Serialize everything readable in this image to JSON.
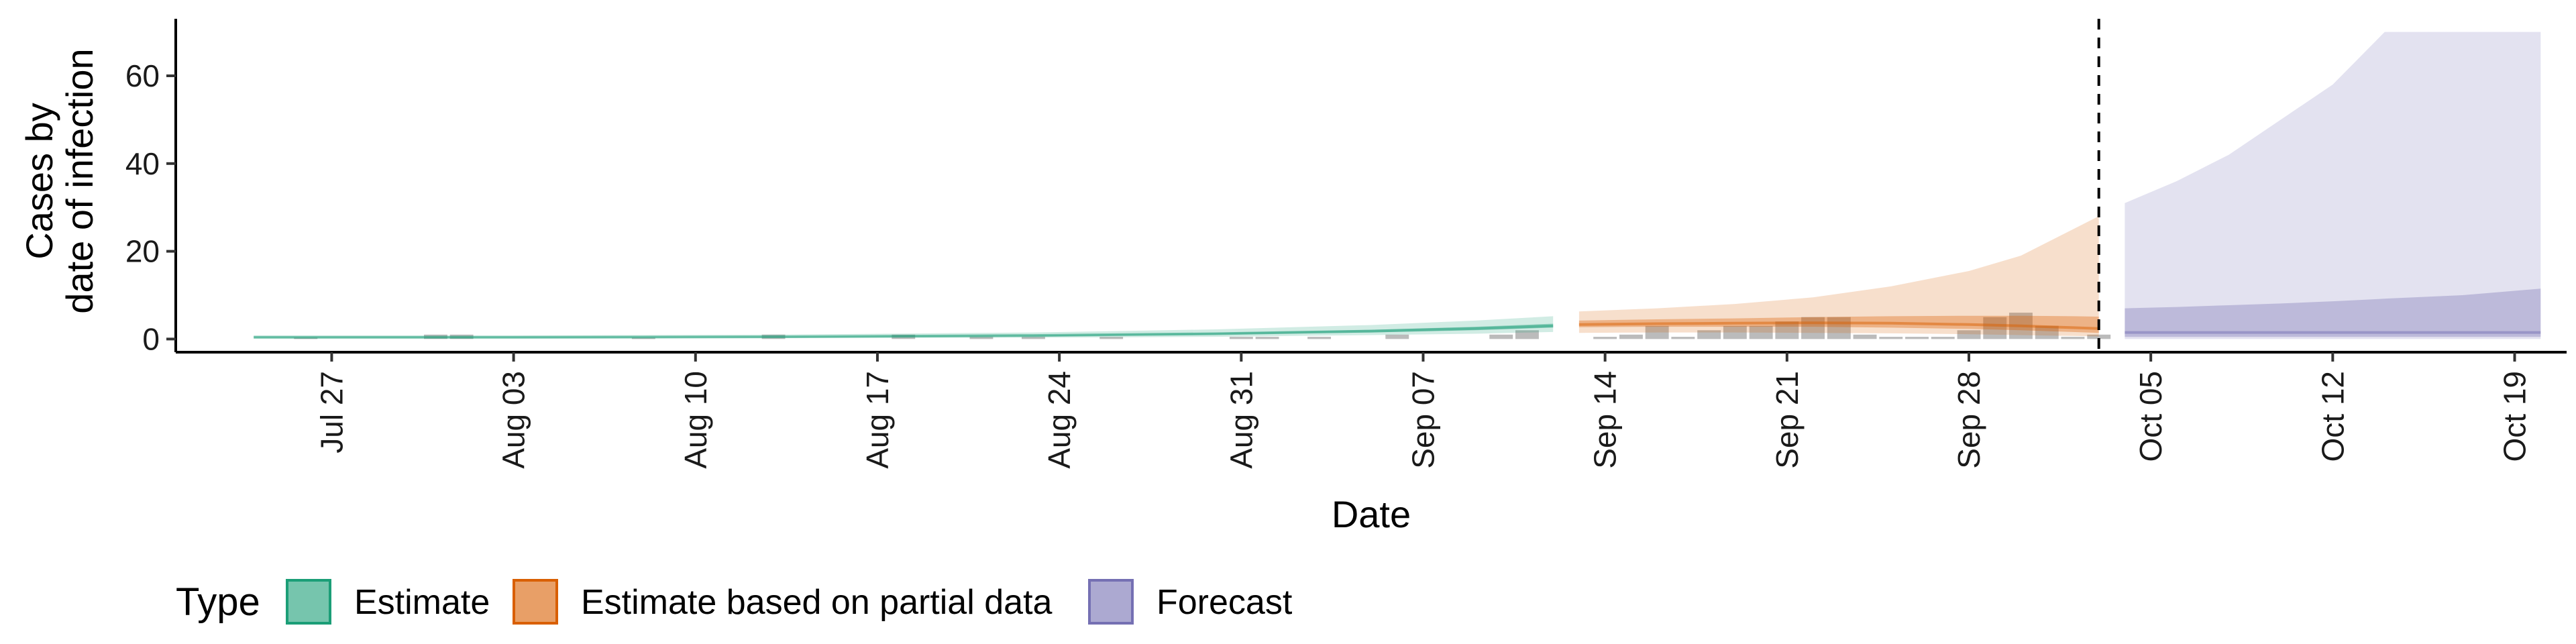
{
  "chart_data": {
    "type": "area",
    "xlabel": "Date",
    "ylabel_lines": [
      "Cases by",
      "date of infection"
    ],
    "ylim": [
      -3,
      73
    ],
    "xlim": [
      "2020-07-21",
      "2020-10-21"
    ],
    "y_ticks": [
      0,
      20,
      40,
      60
    ],
    "x_ticks": [
      {
        "date": "2020-07-27",
        "label": "Jul 27"
      },
      {
        "date": "2020-08-03",
        "label": "Aug 03"
      },
      {
        "date": "2020-08-10",
        "label": "Aug 10"
      },
      {
        "date": "2020-08-17",
        "label": "Aug 17"
      },
      {
        "date": "2020-08-24",
        "label": "Aug 24"
      },
      {
        "date": "2020-08-31",
        "label": "Aug 31"
      },
      {
        "date": "2020-09-07",
        "label": "Sep 07"
      },
      {
        "date": "2020-09-14",
        "label": "Sep 14"
      },
      {
        "date": "2020-09-21",
        "label": "Sep 21"
      },
      {
        "date": "2020-09-28",
        "label": "Sep 28"
      },
      {
        "date": "2020-10-05",
        "label": "Oct 05"
      },
      {
        "date": "2020-10-12",
        "label": "Oct 12"
      },
      {
        "date": "2020-10-19",
        "label": "Oct 19"
      }
    ],
    "forecast_start": "2020-10-03",
    "colors": {
      "estimate": "#1b9e77",
      "partial": "#d95f02",
      "forecast": "#7570b3",
      "bars": "#9e9e9e"
    },
    "legend": {
      "title": "Type",
      "position": "bottom",
      "items": [
        {
          "key": "estimate",
          "label": "Estimate"
        },
        {
          "key": "partial",
          "label": "Estimate based on partial data"
        },
        {
          "key": "forecast",
          "label": "Forecast"
        }
      ]
    },
    "reported_cases": [
      {
        "date": "2020-07-26",
        "value": 0.3
      },
      {
        "date": "2020-07-31",
        "value": 1
      },
      {
        "date": "2020-08-01",
        "value": 1
      },
      {
        "date": "2020-08-08",
        "value": 0.3
      },
      {
        "date": "2020-08-13",
        "value": 1
      },
      {
        "date": "2020-08-18",
        "value": 1
      },
      {
        "date": "2020-08-21",
        "value": 0.5
      },
      {
        "date": "2020-08-23",
        "value": 0.5
      },
      {
        "date": "2020-08-26",
        "value": 0.5
      },
      {
        "date": "2020-08-31",
        "value": 0.5
      },
      {
        "date": "2020-09-01",
        "value": 0.5
      },
      {
        "date": "2020-09-03",
        "value": 0.5
      },
      {
        "date": "2020-09-06",
        "value": 1
      },
      {
        "date": "2020-09-10",
        "value": 1
      },
      {
        "date": "2020-09-11",
        "value": 2
      },
      {
        "date": "2020-09-14",
        "value": 0.5
      },
      {
        "date": "2020-09-15",
        "value": 1
      },
      {
        "date": "2020-09-16",
        "value": 3
      },
      {
        "date": "2020-09-17",
        "value": 0.5
      },
      {
        "date": "2020-09-18",
        "value": 2
      },
      {
        "date": "2020-09-19",
        "value": 3
      },
      {
        "date": "2020-09-20",
        "value": 3
      },
      {
        "date": "2020-09-21",
        "value": 4
      },
      {
        "date": "2020-09-22",
        "value": 5
      },
      {
        "date": "2020-09-23",
        "value": 5
      },
      {
        "date": "2020-09-24",
        "value": 1
      },
      {
        "date": "2020-09-25",
        "value": 0.5
      },
      {
        "date": "2020-09-26",
        "value": 0.5
      },
      {
        "date": "2020-09-27",
        "value": 0.5
      },
      {
        "date": "2020-09-28",
        "value": 2
      },
      {
        "date": "2020-09-29",
        "value": 5
      },
      {
        "date": "2020-09-30",
        "value": 6
      },
      {
        "date": "2020-10-01",
        "value": 3
      },
      {
        "date": "2020-10-02",
        "value": 0.5
      },
      {
        "date": "2020-10-03",
        "value": 1
      }
    ],
    "series": [
      {
        "key": "estimate",
        "points": [
          {
            "date": "2020-07-24",
            "lo90": 0.1,
            "lo50": 0.3,
            "med": 0.4,
            "hi50": 0.5,
            "hi90": 0.8
          },
          {
            "date": "2020-08-03",
            "lo90": 0.1,
            "lo50": 0.3,
            "med": 0.4,
            "hi50": 0.5,
            "hi90": 0.8
          },
          {
            "date": "2020-08-13",
            "lo90": 0.2,
            "lo50": 0.4,
            "med": 0.5,
            "hi50": 0.6,
            "hi90": 1.0
          },
          {
            "date": "2020-08-23",
            "lo90": 0.3,
            "lo50": 0.6,
            "med": 0.8,
            "hi50": 0.9,
            "hi90": 1.5
          },
          {
            "date": "2020-08-30",
            "lo90": 0.5,
            "lo50": 1.0,
            "med": 1.2,
            "hi50": 1.4,
            "hi90": 2.2
          },
          {
            "date": "2020-09-05",
            "lo90": 0.9,
            "lo50": 1.5,
            "med": 1.8,
            "hi50": 2.1,
            "hi90": 3.2
          },
          {
            "date": "2020-09-09",
            "lo90": 1.2,
            "lo50": 2.0,
            "med": 2.4,
            "hi50": 2.8,
            "hi90": 4.2
          },
          {
            "date": "2020-09-12",
            "lo90": 1.6,
            "lo50": 2.6,
            "med": 3.0,
            "hi50": 3.5,
            "hi90": 5.2
          }
        ]
      },
      {
        "key": "partial",
        "points": [
          {
            "date": "2020-09-13",
            "lo90": 1.4,
            "lo50": 2.7,
            "med": 3.3,
            "hi50": 4.2,
            "hi90": 6.3
          },
          {
            "date": "2020-09-16",
            "lo90": 1.5,
            "lo50": 2.8,
            "med": 3.5,
            "hi50": 4.5,
            "hi90": 7.0
          },
          {
            "date": "2020-09-19",
            "lo90": 1.5,
            "lo50": 2.8,
            "med": 3.6,
            "hi50": 4.7,
            "hi90": 8.0
          },
          {
            "date": "2020-09-22",
            "lo90": 1.4,
            "lo50": 2.8,
            "med": 3.7,
            "hi50": 5.0,
            "hi90": 9.5
          },
          {
            "date": "2020-09-25",
            "lo90": 1.3,
            "lo50": 2.6,
            "med": 3.6,
            "hi50": 5.2,
            "hi90": 12.0
          },
          {
            "date": "2020-09-28",
            "lo90": 1.1,
            "lo50": 2.3,
            "med": 3.3,
            "hi50": 5.3,
            "hi90": 15.5
          },
          {
            "date": "2020-09-30",
            "lo90": 0.9,
            "lo50": 2.0,
            "med": 3.0,
            "hi50": 5.3,
            "hi90": 19.0
          },
          {
            "date": "2020-10-02",
            "lo90": 0.7,
            "lo50": 1.6,
            "med": 2.6,
            "hi50": 5.2,
            "hi90": 25.0
          },
          {
            "date": "2020-10-03",
            "lo90": 0.6,
            "lo50": 1.4,
            "med": 2.4,
            "hi50": 5.1,
            "hi90": 28.0
          }
        ]
      },
      {
        "key": "forecast",
        "points": [
          {
            "date": "2020-10-04",
            "lo90": 0,
            "lo50": 0.5,
            "med": 1.5,
            "hi50": 7.0,
            "hi90": 31.0
          },
          {
            "date": "2020-10-06",
            "lo90": 0,
            "lo50": 0.5,
            "med": 1.5,
            "hi50": 7.3,
            "hi90": 36.0
          },
          {
            "date": "2020-10-08",
            "lo90": 0,
            "lo50": 0.5,
            "med": 1.5,
            "hi50": 7.7,
            "hi90": 42.0
          },
          {
            "date": "2020-10-10",
            "lo90": 0,
            "lo50": 0.5,
            "med": 1.5,
            "hi50": 8.1,
            "hi90": 50.0
          },
          {
            "date": "2020-10-12",
            "lo90": 0,
            "lo50": 0.5,
            "med": 1.5,
            "hi50": 8.6,
            "hi90": 58.0
          },
          {
            "date": "2020-10-13",
            "lo90": 0,
            "lo50": 0.5,
            "med": 1.5,
            "hi50": 8.9,
            "hi90": 64.0
          },
          {
            "date": "2020-10-14",
            "lo90": 0,
            "lo50": 0.5,
            "med": 1.5,
            "hi50": 9.2,
            "hi90": 70.0
          },
          {
            "date": "2020-10-17",
            "lo90": 0,
            "lo50": 0.5,
            "med": 1.5,
            "hi50": 10.0,
            "hi90": 70.0
          },
          {
            "date": "2020-10-20",
            "lo90": 0,
            "lo50": 0.5,
            "med": 1.5,
            "hi50": 11.5,
            "hi90": 70.0
          }
        ]
      }
    ]
  }
}
